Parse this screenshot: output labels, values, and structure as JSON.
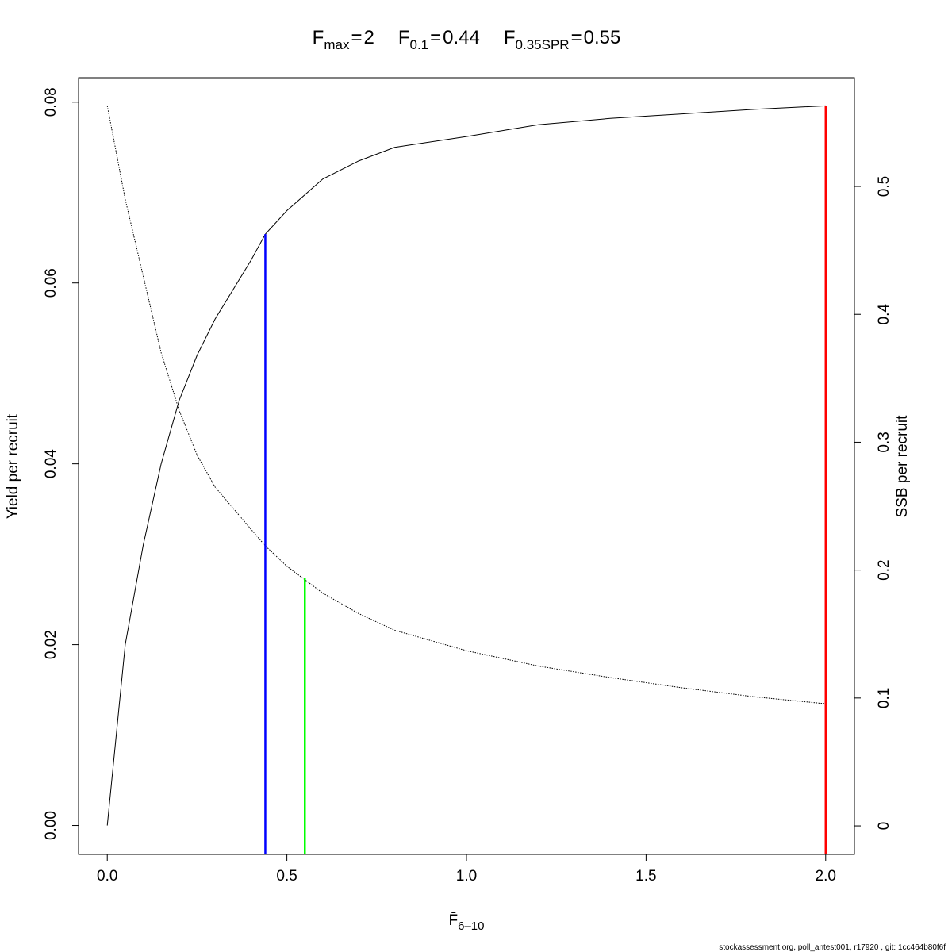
{
  "chart_data": {
    "type": "line",
    "title_parts": [
      {
        "symbol": "F",
        "subscript": "max",
        "relation": "="
      },
      {
        "symbol": "F",
        "subscript": "0.1",
        "relation": "="
      },
      {
        "symbol": "F",
        "subscript": "0.35SPR",
        "relation": "="
      }
    ],
    "xlabel": "F̄",
    "xlabel_subscript": "6–10",
    "ylabel": "Yield per recruit",
    "y2label": "SSB per recruit",
    "footer": "stockassessment.org, poll_antest001, r17920 , git: 1cc464b80f6f",
    "x": [
      0,
      0.05,
      0.1,
      0.15,
      0.2,
      0.25,
      0.3,
      0.4,
      0.44,
      0.5,
      0.6,
      0.7,
      0.8,
      1.0,
      1.2,
      1.4,
      1.6,
      1.8,
      2.0
    ],
    "series": [
      {
        "color": "#000000",
        "dashed": false,
        "values": [
          0,
          0.02,
          0.031,
          0.04,
          0.047,
          0.052,
          0.056,
          0.0625,
          0.0654,
          0.068,
          0.0715,
          0.0735,
          0.075,
          0.0762,
          0.0775,
          0.0782,
          0.0787,
          0.0792,
          0.0796
        ]
      },
      {
        "color": "#000000",
        "dashed": true,
        "axis": "y2",
        "values": [
          0.563,
          0.49,
          0.43,
          0.37,
          0.325,
          0.29,
          0.265,
          0.232,
          0.219,
          0.203,
          0.182,
          0.166,
          0.153,
          0.137,
          0.125,
          0.116,
          0.108,
          0.101,
          0.0955
        ]
      }
    ],
    "reference_lines": [
      {
        "x": 2,
        "y": 0.0796,
        "color": "#ff0000"
      },
      {
        "x": 0.44,
        "y": 0.0654,
        "color": "#0000ff"
      },
      {
        "x": 0.55,
        "y": 0.194,
        "axis": "y2",
        "color": "#00ff00"
      }
    ],
    "xlim": [
      -0.08,
      2.08
    ],
    "xticks": [
      {
        "value": 0,
        "label": "0.0"
      },
      {
        "value": 0.5,
        "label": "0.5"
      },
      {
        "value": 1,
        "label": "1.0"
      },
      {
        "value": 1.5,
        "label": "1.5"
      },
      {
        "value": 2,
        "label": "2.0"
      }
    ],
    "ylim": [
      -0.0032,
      0.0827
    ],
    "yticks": [
      {
        "value": 0,
        "label": "0.00"
      },
      {
        "value": 0.02,
        "label": "0.02"
      },
      {
        "value": 0.04,
        "label": "0.04"
      },
      {
        "value": 0.06,
        "label": "0.06"
      },
      {
        "value": 0.08,
        "label": "0.08"
      }
    ],
    "y2lim": [
      -0.0223,
      0.585
    ],
    "y2ticks": [
      0,
      0.1,
      0.2,
      0.3,
      0.4,
      0.5
    ],
    "grid": false
  }
}
